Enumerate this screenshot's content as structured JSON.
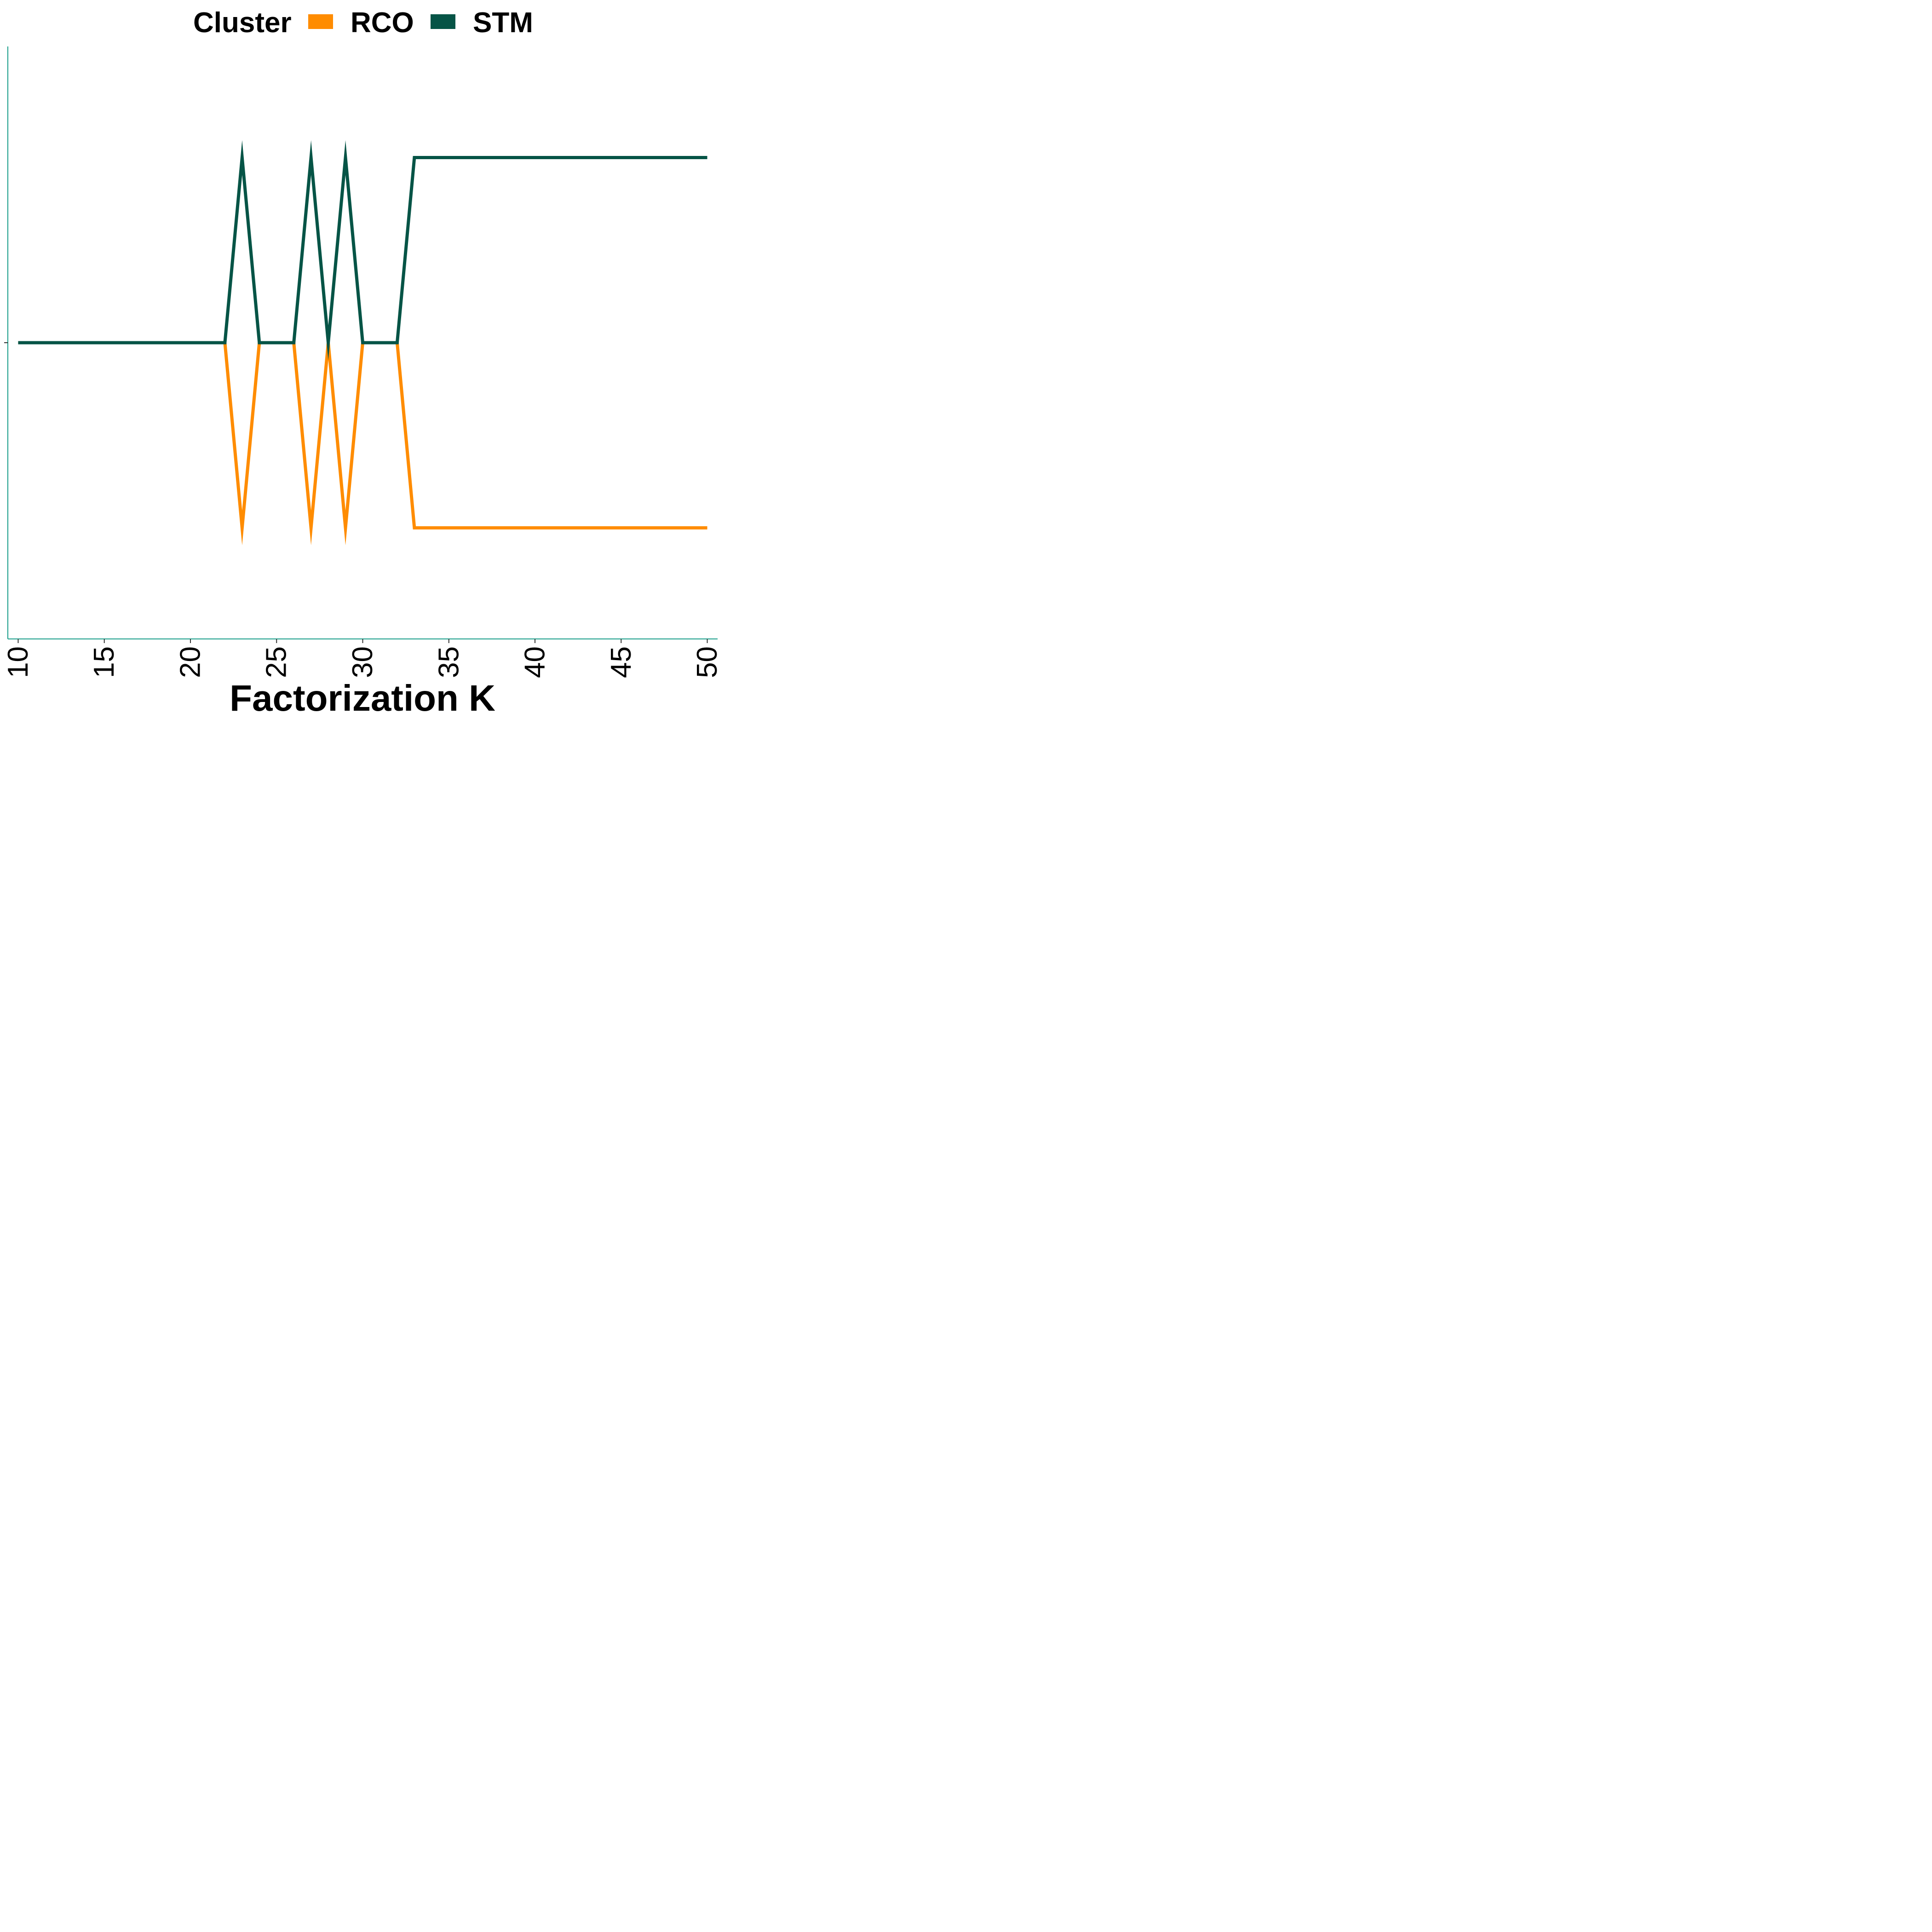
{
  "chart_data": {
    "type": "line",
    "title": "",
    "xlabel": "Factorization K",
    "ylabel": "",
    "x": [
      10,
      11,
      12,
      13,
      14,
      15,
      16,
      17,
      18,
      19,
      20,
      21,
      22,
      23,
      24,
      25,
      26,
      27,
      28,
      29,
      30,
      31,
      32,
      33,
      34,
      35,
      36,
      37,
      38,
      39,
      40,
      41,
      42,
      43,
      44,
      45,
      46,
      47,
      48,
      49,
      50
    ],
    "series": [
      {
        "name": "RCO",
        "color": "#FF8C00",
        "values": [
          0,
          0,
          0,
          0,
          0,
          0,
          0,
          0,
          0,
          0,
          0,
          0,
          0,
          -1,
          0,
          0,
          0,
          -1,
          0,
          -1,
          0,
          0,
          0,
          -1,
          -1,
          -1,
          -1,
          -1,
          -1,
          -1,
          -1,
          -1,
          -1,
          -1,
          -1,
          -1,
          -1,
          -1,
          -1,
          -1,
          -1
        ]
      },
      {
        "name": "STM",
        "color": "#065446",
        "values": [
          0,
          0,
          0,
          0,
          0,
          0,
          0,
          0,
          0,
          0,
          0,
          0,
          0,
          1,
          0,
          0,
          0,
          1,
          0,
          1,
          0,
          0,
          0,
          1,
          1,
          1,
          1,
          1,
          1,
          1,
          1,
          1,
          1,
          1,
          1,
          1,
          1,
          1,
          1,
          1,
          1
        ]
      }
    ],
    "xlim": [
      9.4,
      50.6
    ],
    "ylim": [
      -1.6,
      1.6
    ],
    "xticks": [
      "10",
      "15",
      "20",
      "25",
      "30",
      "35",
      "40",
      "45",
      "50"
    ],
    "xtick_values": [
      10,
      15,
      20,
      25,
      30,
      35,
      40,
      45,
      50
    ],
    "yticks": [
      0
    ],
    "ytick_labels": [
      ""
    ],
    "grid": false,
    "legend": {
      "title": "Cluster",
      "position": "top",
      "entries": [
        "RCO",
        "STM"
      ]
    },
    "axis_color": "#1A9E8A"
  }
}
